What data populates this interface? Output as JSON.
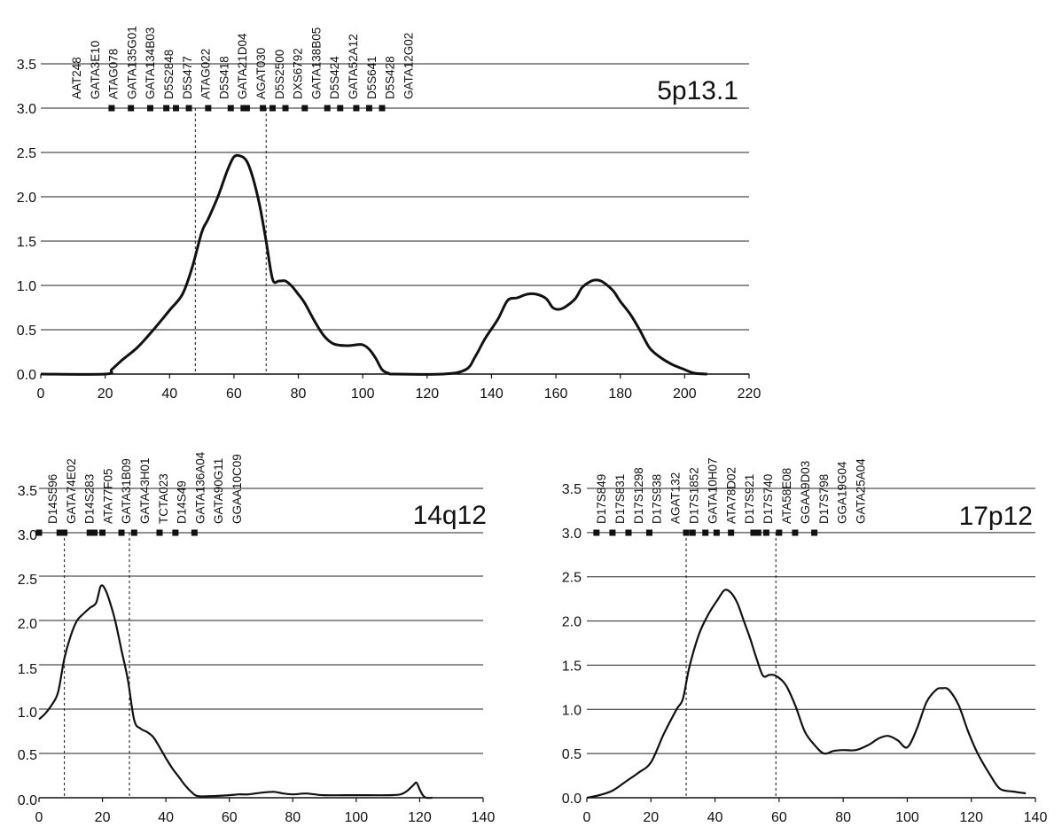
{
  "chart_data": [
    {
      "type": "line",
      "title": "5p13.1",
      "xlabel": "",
      "ylabel": "",
      "xlim": [
        0,
        220
      ],
      "ylim": [
        0,
        3.5
      ],
      "xticks": [
        0,
        20,
        40,
        60,
        80,
        100,
        120,
        140,
        160,
        180,
        200,
        220
      ],
      "yticks": [
        0.0,
        0.5,
        1.0,
        1.5,
        2.0,
        2.5,
        3.0,
        3.5
      ],
      "ytick_labels": [
        "0.0",
        "0.5",
        "1.0",
        "1.5",
        "2.0",
        "2.5",
        "3.0",
        "3.5"
      ],
      "grid": "horizontal",
      "support_interval": [
        48,
        70
      ],
      "markers": [
        {
          "name": "AAT248",
          "x": 22
        },
        {
          "name": "GATA3E10",
          "x": 28
        },
        {
          "name": "ATAG078",
          "x": 34
        },
        {
          "name": "GATA135G01",
          "x": 39
        },
        {
          "name": "GATA134B03",
          "x": 42
        },
        {
          "name": "D5S2848",
          "x": 46
        },
        {
          "name": "D5S477",
          "x": 52
        },
        {
          "name": "ATAG022",
          "x": 59
        },
        {
          "name": "D5S418",
          "x": 63
        },
        {
          "name": "GATA21D04",
          "x": 64
        },
        {
          "name": "AGAT030",
          "x": 69
        },
        {
          "name": "D5S2500",
          "x": 72
        },
        {
          "name": "DXS6792",
          "x": 76
        },
        {
          "name": "GATA138B05",
          "x": 82
        },
        {
          "name": "D5S424",
          "x": 89
        },
        {
          "name": "GATA52A12",
          "x": 93
        },
        {
          "name": "D5S641",
          "x": 98
        },
        {
          "name": "D5S428",
          "x": 102
        },
        {
          "name": "GATA12G02",
          "x": 106
        }
      ],
      "series": [
        {
          "x": [
            0,
            20,
            22,
            25,
            30,
            35,
            40,
            44,
            47,
            50,
            52,
            55,
            58,
            60,
            62,
            64,
            66,
            68,
            70,
            72,
            74,
            76,
            78,
            80,
            82,
            85,
            88,
            91,
            95,
            98,
            100,
            102,
            104,
            106,
            108,
            110,
            125,
            132,
            135,
            138,
            142,
            145,
            148,
            151,
            154,
            157,
            159,
            161,
            163,
            166,
            168,
            170,
            172,
            174,
            176,
            178,
            180,
            183,
            186,
            189,
            192,
            196,
            200,
            203,
            207
          ],
          "y": [
            0,
            0,
            0.05,
            0.15,
            0.3,
            0.5,
            0.72,
            0.9,
            1.2,
            1.6,
            1.75,
            2.0,
            2.3,
            2.45,
            2.46,
            2.4,
            2.2,
            1.9,
            1.5,
            1.07,
            1.05,
            1.05,
            0.99,
            0.9,
            0.8,
            0.6,
            0.43,
            0.34,
            0.32,
            0.33,
            0.33,
            0.28,
            0.18,
            0.05,
            0.01,
            0,
            0,
            0.05,
            0.2,
            0.4,
            0.62,
            0.83,
            0.86,
            0.9,
            0.9,
            0.85,
            0.75,
            0.73,
            0.76,
            0.85,
            0.97,
            1.03,
            1.06,
            1.05,
            1.0,
            0.93,
            0.82,
            0.68,
            0.5,
            0.3,
            0.2,
            0.11,
            0.05,
            0.01,
            0
          ]
        }
      ]
    },
    {
      "type": "line",
      "title": "14q12",
      "xlabel": "",
      "ylabel": "",
      "xlim": [
        0,
        140
      ],
      "ylim": [
        0,
        3.1
      ],
      "xticks": [
        0,
        20,
        40,
        60,
        80,
        100,
        120,
        140
      ],
      "yticks": [
        0.0,
        0.5,
        1.0,
        1.5,
        2.0,
        2.5,
        3.0,
        3.5
      ],
      "ytick_labels": [
        "0.0",
        "0.5",
        "1.0",
        "1.5",
        "2.0",
        "2.5",
        "3.0",
        "3.5"
      ],
      "grid": "horizontal",
      "support_interval": [
        8,
        28.5
      ],
      "markers": [
        {
          "name": "D14S596",
          "x": 0
        },
        {
          "name": "GATA74E02",
          "x": 6.5
        },
        {
          "name": "D14S283",
          "x": 8
        },
        {
          "name": "ATA77F05",
          "x": 16
        },
        {
          "name": "GATA31B09",
          "x": 17.5
        },
        {
          "name": "GATA43H01",
          "x": 20
        },
        {
          "name": "TCTA023",
          "x": 26
        },
        {
          "name": "D14S49",
          "x": 30
        },
        {
          "name": "GATA136A04",
          "x": 38
        },
        {
          "name": "GATA90G11",
          "x": 43
        },
        {
          "name": "GGAA10C09",
          "x": 49
        }
      ],
      "series": [
        {
          "x": [
            0,
            2,
            4,
            6,
            8,
            10,
            12,
            14,
            16,
            18,
            19.5,
            21,
            22.5,
            24,
            26,
            28,
            30,
            32,
            34,
            36,
            38,
            40,
            42,
            44,
            46,
            48,
            50,
            55,
            60,
            63,
            66,
            70,
            74,
            77,
            80,
            84,
            87,
            90,
            100,
            110,
            114,
            116,
            118,
            119,
            120,
            121,
            122,
            124
          ],
          "y": [
            0.93,
            1.0,
            1.1,
            1.25,
            1.65,
            1.92,
            2.1,
            2.18,
            2.25,
            2.31,
            2.51,
            2.46,
            2.3,
            2.1,
            1.75,
            1.4,
            0.92,
            0.82,
            0.78,
            0.72,
            0.6,
            0.47,
            0.35,
            0.25,
            0.15,
            0.07,
            0.02,
            0.02,
            0.03,
            0.04,
            0.04,
            0.06,
            0.07,
            0.05,
            0.04,
            0.05,
            0.04,
            0.03,
            0.03,
            0.03,
            0.04,
            0.08,
            0.15,
            0.18,
            0.1,
            0.03,
            0,
            0
          ]
        }
      ]
    },
    {
      "type": "line",
      "title": "17p12",
      "xlabel": "",
      "ylabel": "",
      "xlim": [
        0,
        140
      ],
      "ylim": [
        0,
        3.5
      ],
      "xticks": [
        0,
        20,
        40,
        60,
        80,
        100,
        120,
        140
      ],
      "yticks": [
        0.0,
        0.5,
        1.0,
        1.5,
        2.0,
        2.5,
        3.0,
        3.5
      ],
      "ytick_labels": [
        "0.0",
        "0.5",
        "1.0",
        "1.5",
        "2.0",
        "2.5",
        "3.0",
        "3.5"
      ],
      "grid": "horizontal",
      "support_interval": [
        31,
        59
      ],
      "markers": [
        {
          "name": "D17S849",
          "x": 3
        },
        {
          "name": "D17S831",
          "x": 8
        },
        {
          "name": "D17S1298",
          "x": 13
        },
        {
          "name": "D17S938",
          "x": 19.5
        },
        {
          "name": "AGAT132",
          "x": 31
        },
        {
          "name": "D17S1852",
          "x": 33
        },
        {
          "name": "GATA10H07",
          "x": 37
        },
        {
          "name": "ATA78D02",
          "x": 40.5
        },
        {
          "name": "D17S921",
          "x": 45
        },
        {
          "name": "D17S740",
          "x": 52
        },
        {
          "name": "ATA58E08",
          "x": 53.5
        },
        {
          "name": "GGAA9D03",
          "x": 56
        },
        {
          "name": "D17S798",
          "x": 60
        },
        {
          "name": "GGA19G04",
          "x": 65
        },
        {
          "name": "GATA25A04",
          "x": 71
        }
      ],
      "series": [
        {
          "x": [
            0,
            4,
            8,
            12,
            16,
            20,
            24,
            28,
            30,
            32,
            35,
            38,
            41,
            43,
            45,
            47,
            49,
            51,
            53,
            55,
            57,
            59,
            62,
            65,
            68,
            71,
            74,
            77,
            80,
            84,
            88,
            91,
            94,
            97,
            100,
            103,
            106,
            109,
            111,
            113,
            116,
            119,
            122,
            126,
            129,
            133,
            137
          ],
          "y": [
            0,
            0.03,
            0.08,
            0.18,
            0.28,
            0.4,
            0.72,
            1.0,
            1.12,
            1.48,
            1.85,
            2.08,
            2.25,
            2.35,
            2.32,
            2.2,
            2.0,
            1.8,
            1.57,
            1.38,
            1.39,
            1.38,
            1.28,
            1.05,
            0.75,
            0.6,
            0.5,
            0.53,
            0.54,
            0.54,
            0.6,
            0.67,
            0.7,
            0.65,
            0.57,
            0.78,
            1.08,
            1.22,
            1.24,
            1.22,
            1.05,
            0.75,
            0.5,
            0.25,
            0.1,
            0.07,
            0.05
          ]
        }
      ]
    }
  ]
}
